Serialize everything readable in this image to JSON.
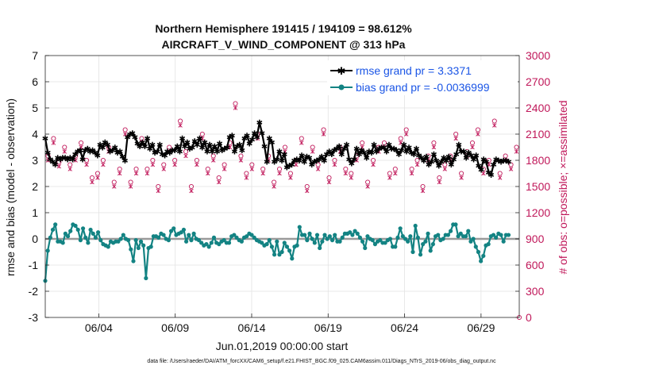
{
  "chart_data": {
    "type": "line",
    "title": "Northern Hemisphere 191415 / 194109 = 98.612%",
    "subtitle": "AIRCRAFT_V_WIND_COMPONENT @ 313 hPa",
    "xlabel": "Jun.01,2019 00:00:00 start",
    "ylabel": "rmse and bias (model - observation)",
    "ylabel_right": "# of obs: o=possible; ×=assimilated",
    "xlim": [
      0,
      31
    ],
    "ylim": [
      -3,
      7
    ],
    "ylim_right": [
      0,
      3000
    ],
    "yticks": [
      "-3",
      "-2",
      "-1",
      "0",
      "1",
      "2",
      "3",
      "4",
      "5",
      "6",
      "7"
    ],
    "yticks_right": [
      "0",
      "300",
      "600",
      "900",
      "1200",
      "1500",
      "1800",
      "2100",
      "2400",
      "2700",
      "3000"
    ],
    "xticks": [
      {
        "x": 3.5,
        "label": "06/04"
      },
      {
        "x": 8.5,
        "label": "06/09"
      },
      {
        "x": 13.5,
        "label": "06/14"
      },
      {
        "x": 18.5,
        "label": "06/19"
      },
      {
        "x": 23.5,
        "label": "06/24"
      },
      {
        "x": 28.5,
        "label": "06/29"
      }
    ],
    "legend": [
      {
        "name": "rmse grand pr = 3.3371",
        "color": "#000000",
        "marker": "star"
      },
      {
        "name": "bias grand pr = -0.0036999",
        "color": "#138383",
        "marker": "dot"
      }
    ],
    "footer": "data file: /Users/raeder/DAI/ATM_forcXX/CAM6_setup/f.e21.FHIST_BGC.f09_025.CAM6assim.011/Diags_NTrS_2019-06/obs_diag_output.nc",
    "series": [
      {
        "name": "rmse",
        "color": "#000000",
        "values": [
          3.85,
          3.3,
          3.05,
          2.95,
          2.85,
          3.1,
          3.05,
          3.1,
          3.1,
          3.05,
          3.1,
          3.05,
          3.25,
          3.35,
          3.4,
          3.05,
          3.4,
          3.45,
          3.35,
          3.4,
          3.3,
          3.2,
          3.6,
          3.5,
          3.7,
          3.6,
          3.35,
          3.4,
          3.5,
          3.3,
          3.35,
          3.15,
          3.0,
          3.9,
          4.0,
          4.05,
          3.9,
          3.65,
          3.55,
          3.7,
          3.55,
          3.85,
          3.45,
          3.6,
          3.3,
          3.35,
          3.6,
          3.25,
          3.2,
          3.35,
          3.3,
          3.4,
          3.4,
          3.55,
          3.35,
          3.85,
          3.55,
          3.7,
          3.45,
          3.5,
          3.75,
          3.6,
          3.85,
          3.5,
          3.7,
          3.35,
          3.6,
          3.35,
          3.55,
          3.35,
          3.65,
          3.4,
          3.45,
          3.5,
          3.9,
          3.95,
          3.35,
          3.55,
          3.6,
          3.4,
          3.85,
          3.95,
          3.65,
          3.8,
          4.05,
          3.9,
          4.45,
          4.05,
          3.55,
          2.95,
          3.85,
          3.7,
          2.95,
          3.05,
          3.35,
          3.0,
          3.25,
          2.75,
          2.8,
          2.85,
          3.0,
          3.05,
          3.0,
          3.2,
          2.95,
          3.15,
          3.1,
          2.85,
          2.95,
          3.0,
          3.05,
          3.15,
          3.0,
          3.25,
          3.35,
          3.25,
          3.4,
          3.45,
          3.55,
          3.25,
          3.45,
          3.6,
          3.05,
          2.9,
          3.05,
          3.45,
          3.25,
          3.4,
          3.3,
          3.1,
          3.35,
          3.3,
          3.6,
          3.35,
          3.45,
          3.5,
          3.5,
          3.35,
          3.6,
          3.45,
          3.45,
          3.4,
          3.25,
          3.4,
          3.6,
          3.35,
          3.5,
          3.3,
          3.25,
          3.45,
          3.2,
          3.1,
          3.0,
          3.15,
          2.85,
          2.95,
          3.25,
          3.0,
          2.8,
          2.95,
          3.1,
          3.0,
          3.15,
          2.85,
          3.05,
          3.25,
          3.6,
          3.35,
          3.35,
          3.1,
          3.3,
          3.2,
          3.05,
          3.2,
          2.8,
          2.65,
          3.05,
          2.95,
          2.55,
          2.45,
          2.85,
          3.05,
          3.0,
          2.95,
          3.0,
          3.0,
          2.95
        ]
      },
      {
        "name": "bias",
        "color": "#138383",
        "values": [
          -1.6,
          -0.45,
          0.05,
          0.35,
          0.55,
          -0.1,
          -0.1,
          -0.15,
          0.2,
          0.1,
          0.3,
          0.55,
          0.5,
          0.35,
          -0.05,
          0.4,
          0.05,
          -0.15,
          0.35,
          0.2,
          0.05,
          0.25,
          -0.05,
          -0.2,
          -0.25,
          -0.3,
          -0.1,
          -0.15,
          -0.1,
          -0.1,
          0.0,
          0.15,
          0.0,
          -0.05,
          -0.4,
          -0.85,
          -0.05,
          -0.35,
          -0.1,
          -0.25,
          -1.5,
          -0.35,
          -0.3,
          0.1,
          0.1,
          0.05,
          0.2,
          0.15,
          0.0,
          -0.05,
          0.3,
          0.4,
          0.15,
          0.2,
          0.25,
          0.35,
          -0.1,
          0.15,
          -0.05,
          0.2,
          0.0,
          -0.05,
          -0.15,
          -0.25,
          -0.2,
          -0.3,
          -0.15,
          0.05,
          -0.15,
          -0.2,
          -0.1,
          -0.05,
          -0.15,
          -0.15,
          0.1,
          0.15,
          0.05,
          -0.05,
          -0.1,
          0.05,
          0.1,
          0.2,
          0.15,
          0.05,
          -0.05,
          -0.1,
          -0.15,
          -0.25,
          -0.2,
          -0.05,
          -0.3,
          -0.6,
          -0.1,
          -0.6,
          -0.5,
          -0.15,
          -0.3,
          -0.45,
          -0.75,
          -0.3,
          -0.25,
          0.45,
          0.15,
          0.15,
          -0.05,
          0.2,
          0.0,
          -0.15,
          0.15,
          -0.35,
          -0.1,
          0.15,
          0.0,
          0.1,
          -0.05,
          0.15,
          -0.1,
          -0.1,
          0.05,
          0.2,
          0.2,
          0.25,
          0.15,
          0.3,
          0.2,
          0.05,
          -0.1,
          -0.35,
          0.1,
          0.0,
          -0.05,
          -0.2,
          -0.1,
          -0.05,
          -0.15,
          -0.15,
          -0.05,
          0.0,
          -0.3,
          -0.3,
          0.05,
          0.4,
          0.1,
          0.0,
          -0.1,
          0.1,
          -0.5,
          0.5,
          0.05,
          -0.6,
          -0.2,
          -0.1,
          0.2,
          -0.45,
          -0.2,
          0.1,
          0.15,
          -0.05,
          0.0,
          0.15,
          0.15,
          0.3,
          0.55,
          0.55,
          0.1,
          0.2,
          0.1,
          0.1,
          0.3,
          -0.1,
          0.0,
          -0.3,
          -0.5,
          -0.85,
          -0.65,
          -0.25,
          -0.2,
          0.1,
          0.15,
          0.05,
          0.2,
          0.15,
          -0.1,
          0.15,
          0.15
        ]
      },
      {
        "name": "obs possible",
        "color": "#c0185a",
        "values": [
          1850,
          2050,
          1780,
          1950,
          1750,
          1850,
          2000,
          1800,
          1600,
          1650,
          1800,
          1950,
          1550,
          1700,
          2150,
          1550,
          1700,
          2050,
          1700,
          1800,
          1500,
          1750,
          1950,
          1800,
          2250,
          1900,
          1500,
          1800,
          2100,
          1700,
          1850,
          1600,
          1750,
          2000,
          2450,
          1850,
          1650,
          1750,
          2100,
          1700,
          1850,
          1550,
          1700,
          1950,
          1650,
          1800,
          2050,
          1500,
          1950,
          1750,
          2150,
          1600,
          1800,
          1950,
          1700,
          1650,
          1850,
          2000,
          1550,
          1800,
          1950,
          2000,
          1650,
          1700,
          2050,
          2150,
          1700,
          1800,
          1500,
          1850,
          2000,
          1600,
          1750,
          1850,
          2100,
          1650,
          1900,
          2000,
          2150,
          1700,
          1800,
          2250,
          1650,
          1850,
          1750,
          1950
        ]
      },
      {
        "name": "obs assimilated",
        "color": "#c0185a",
        "values": [
          1800,
          2000,
          1730,
          1900,
          1700,
          1800,
          1950,
          1750,
          1550,
          1600,
          1750,
          1900,
          1500,
          1650,
          2100,
          1500,
          1650,
          2000,
          1650,
          1750,
          1450,
          1700,
          1900,
          1750,
          2200,
          1850,
          1450,
          1750,
          2050,
          1650,
          1800,
          1550,
          1700,
          1950,
          2400,
          1800,
          1600,
          1700,
          2050,
          1650,
          1800,
          1500,
          1650,
          1900,
          1600,
          1750,
          2000,
          1450,
          1900,
          1700,
          2100,
          1550,
          1750,
          1900,
          1650,
          1600,
          1800,
          1950,
          1500,
          1750,
          1900,
          1950,
          1600,
          1650,
          2000,
          2100,
          1650,
          1750,
          1450,
          1800,
          1950,
          1550,
          1700,
          1800,
          2050,
          1600,
          1850,
          1950,
          2100,
          1650,
          1750,
          2200,
          1600,
          1800,
          1700,
          1900
        ]
      }
    ]
  }
}
